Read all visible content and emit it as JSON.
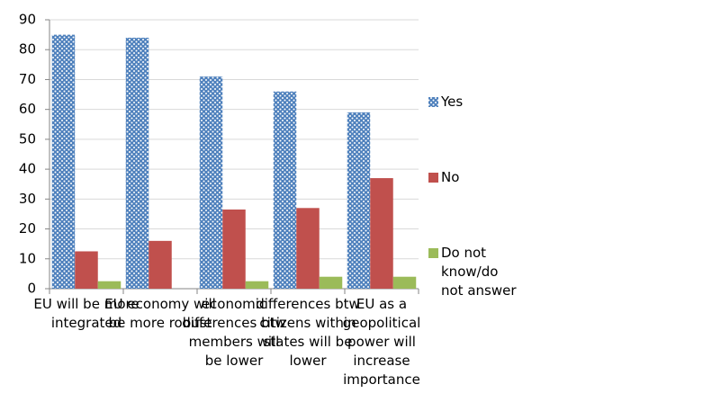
{
  "chart_data": {
    "type": "bar",
    "categories": [
      "EU will be more integrated",
      "EU economy will be more robust",
      "economic differences btw members will be lower",
      "differences btw citizens within states will be lower",
      "EU as a geopolitical power will increase importance"
    ],
    "series": [
      {
        "name": "Yes",
        "color": "#4f81bd",
        "pattern": "dots",
        "values": [
          85,
          84,
          71,
          66,
          59
        ]
      },
      {
        "name": "No",
        "color": "#c0504d",
        "values": [
          12.5,
          16,
          26.5,
          27,
          37
        ]
      },
      {
        "name": "Do not know/do not answer",
        "color": "#9bbb59",
        "values": [
          2.5,
          0,
          2.5,
          4,
          4
        ]
      }
    ],
    "ylim": [
      0,
      90
    ],
    "yticks": [
      0,
      10,
      20,
      30,
      40,
      50,
      60,
      70,
      80,
      90
    ],
    "grid": true,
    "legend": "right"
  }
}
